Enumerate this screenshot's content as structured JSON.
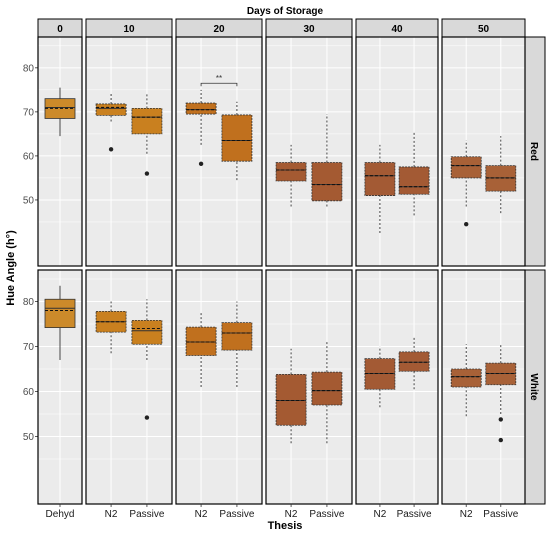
{
  "chart_data": {
    "type": "boxplot",
    "title": "Days of Storage",
    "xlabel": "Thesis",
    "ylabel": "Hue Angle (h°)",
    "ylim": [
      35,
      87
    ],
    "yticks": [
      50,
      60,
      70,
      80
    ],
    "grid": true,
    "facet_columns": [
      "0",
      "10",
      "20",
      "30",
      "40",
      "50"
    ],
    "facet_rows": [
      "Red",
      "White"
    ],
    "panel_categories": [
      [
        "Dehyd"
      ],
      [
        "N2",
        "Passive"
      ],
      [
        "N2",
        "Passive"
      ],
      [
        "N2",
        "Passive"
      ],
      [
        "N2",
        "Passive"
      ],
      [
        "N2",
        "Passive"
      ]
    ],
    "colors": {
      "panel_bg": "#ebebeb",
      "grid": "#ffffff",
      "strip_bg": "#d9d9d9",
      "box_fill": {
        "0": "#cc8a2a",
        "10": "#c9801f",
        "20": "#c0701e",
        "30": "#a45a32",
        "40": "#a35a34",
        "50": "#a86137"
      }
    },
    "annotations": [
      {
        "facet_column": "20",
        "facet_row": "Red",
        "text": "**"
      }
    ],
    "series": [
      {
        "facet_row": "Red",
        "facet_column": "0",
        "category": "Dehyd",
        "whisker_low": 64.5,
        "q1": 68.5,
        "median": 71.0,
        "mean": 70.8,
        "q3": 73.0,
        "whisker_high": 75.5,
        "outliers": []
      },
      {
        "facet_row": "Red",
        "facet_column": "10",
        "category": "N2",
        "whisker_low": 67.8,
        "q1": 69.2,
        "median": 70.8,
        "mean": 71.0,
        "q3": 71.8,
        "whisker_high": 74.5,
        "outliers": [
          61.5
        ]
      },
      {
        "facet_row": "Red",
        "facet_column": "10",
        "category": "Passive",
        "whisker_low": 60.5,
        "q1": 65.0,
        "median": 68.8,
        "mean": 68.8,
        "q3": 70.8,
        "whisker_high": 74.0,
        "outliers": [
          56.0
        ]
      },
      {
        "facet_row": "Red",
        "facet_column": "20",
        "category": "N2",
        "whisker_low": 62.5,
        "q1": 69.5,
        "median": 70.5,
        "mean": 70.5,
        "q3": 72.0,
        "whisker_high": 75.0,
        "outliers": [
          58.2
        ]
      },
      {
        "facet_row": "Red",
        "facet_column": "20",
        "category": "Passive",
        "whisker_low": 54.5,
        "q1": 58.8,
        "median": 63.5,
        "mean": 63.5,
        "q3": 69.3,
        "whisker_high": 72.3,
        "outliers": []
      },
      {
        "facet_row": "Red",
        "facet_column": "30",
        "category": "N2",
        "whisker_low": 48.5,
        "q1": 54.3,
        "median": 56.8,
        "mean": 56.8,
        "q3": 58.5,
        "whisker_high": 62.5,
        "outliers": []
      },
      {
        "facet_row": "Red",
        "facet_column": "30",
        "category": "Passive",
        "whisker_low": 48.5,
        "q1": 49.8,
        "median": 53.5,
        "mean": 53.5,
        "q3": 58.5,
        "whisker_high": 69.5,
        "outliers": []
      },
      {
        "facet_row": "Red",
        "facet_column": "40",
        "category": "N2",
        "whisker_low": 42.5,
        "q1": 51.0,
        "median": 55.5,
        "mean": 55.5,
        "q3": 58.5,
        "whisker_high": 62.5,
        "outliers": []
      },
      {
        "facet_row": "Red",
        "facet_column": "40",
        "category": "Passive",
        "whisker_low": 46.5,
        "q1": 51.3,
        "median": 53.0,
        "mean": 53.0,
        "q3": 57.5,
        "whisker_high": 65.5,
        "outliers": []
      },
      {
        "facet_row": "Red",
        "facet_column": "50",
        "category": "N2",
        "whisker_low": 48.5,
        "q1": 55.0,
        "median": 57.8,
        "mean": 57.8,
        "q3": 59.8,
        "whisker_high": 63.5,
        "outliers": [
          44.5
        ]
      },
      {
        "facet_row": "Red",
        "facet_column": "50",
        "category": "Passive",
        "whisker_low": 47.0,
        "q1": 52.0,
        "median": 55.0,
        "mean": 55.0,
        "q3": 57.8,
        "whisker_high": 64.5,
        "outliers": []
      },
      {
        "facet_row": "White",
        "facet_column": "0",
        "category": "Dehyd",
        "whisker_low": 67.0,
        "q1": 74.2,
        "median": 78.5,
        "mean": 78.0,
        "q3": 80.5,
        "whisker_high": 83.5,
        "outliers": []
      },
      {
        "facet_row": "White",
        "facet_column": "10",
        "category": "N2",
        "whisker_low": 68.5,
        "q1": 73.2,
        "median": 75.5,
        "mean": 75.5,
        "q3": 77.8,
        "whisker_high": 80.0,
        "outliers": []
      },
      {
        "facet_row": "White",
        "facet_column": "10",
        "category": "Passive",
        "whisker_low": 67.0,
        "q1": 70.5,
        "median": 73.5,
        "mean": 74.0,
        "q3": 75.8,
        "whisker_high": 80.5,
        "outliers": [
          54.2
        ]
      },
      {
        "facet_row": "White",
        "facet_column": "20",
        "category": "N2",
        "whisker_low": 61.0,
        "q1": 68.0,
        "median": 71.0,
        "mean": 71.0,
        "q3": 74.3,
        "whisker_high": 77.5,
        "outliers": []
      },
      {
        "facet_row": "White",
        "facet_column": "20",
        "category": "Passive",
        "whisker_low": 61.0,
        "q1": 69.2,
        "median": 73.0,
        "mean": 73.0,
        "q3": 75.3,
        "whisker_high": 80.0,
        "outliers": []
      },
      {
        "facet_row": "White",
        "facet_column": "30",
        "category": "N2",
        "whisker_low": 48.5,
        "q1": 52.5,
        "median": 58.0,
        "mean": 58.0,
        "q3": 63.8,
        "whisker_high": 69.5,
        "outliers": []
      },
      {
        "facet_row": "White",
        "facet_column": "30",
        "category": "Passive",
        "whisker_low": 48.5,
        "q1": 57.0,
        "median": 60.2,
        "mean": 60.2,
        "q3": 64.3,
        "whisker_high": 71.0,
        "outliers": []
      },
      {
        "facet_row": "White",
        "facet_column": "40",
        "category": "N2",
        "whisker_low": 56.5,
        "q1": 60.5,
        "median": 64.0,
        "mean": 64.0,
        "q3": 67.3,
        "whisker_high": 70.0,
        "outliers": []
      },
      {
        "facet_row": "White",
        "facet_column": "40",
        "category": "Passive",
        "whisker_low": 60.5,
        "q1": 64.5,
        "median": 66.5,
        "mean": 66.5,
        "q3": 68.8,
        "whisker_high": 72.0,
        "outliers": []
      },
      {
        "facet_row": "White",
        "facet_column": "50",
        "category": "N2",
        "whisker_low": 54.5,
        "q1": 61.0,
        "median": 63.3,
        "mean": 63.3,
        "q3": 65.0,
        "whisker_high": 70.5,
        "outliers": []
      },
      {
        "facet_row": "White",
        "facet_column": "50",
        "category": "Passive",
        "whisker_low": 55.0,
        "q1": 61.5,
        "median": 64.0,
        "mean": 64.0,
        "q3": 66.3,
        "whisker_high": 70.5,
        "outliers": [
          53.8,
          49.2
        ]
      }
    ]
  }
}
